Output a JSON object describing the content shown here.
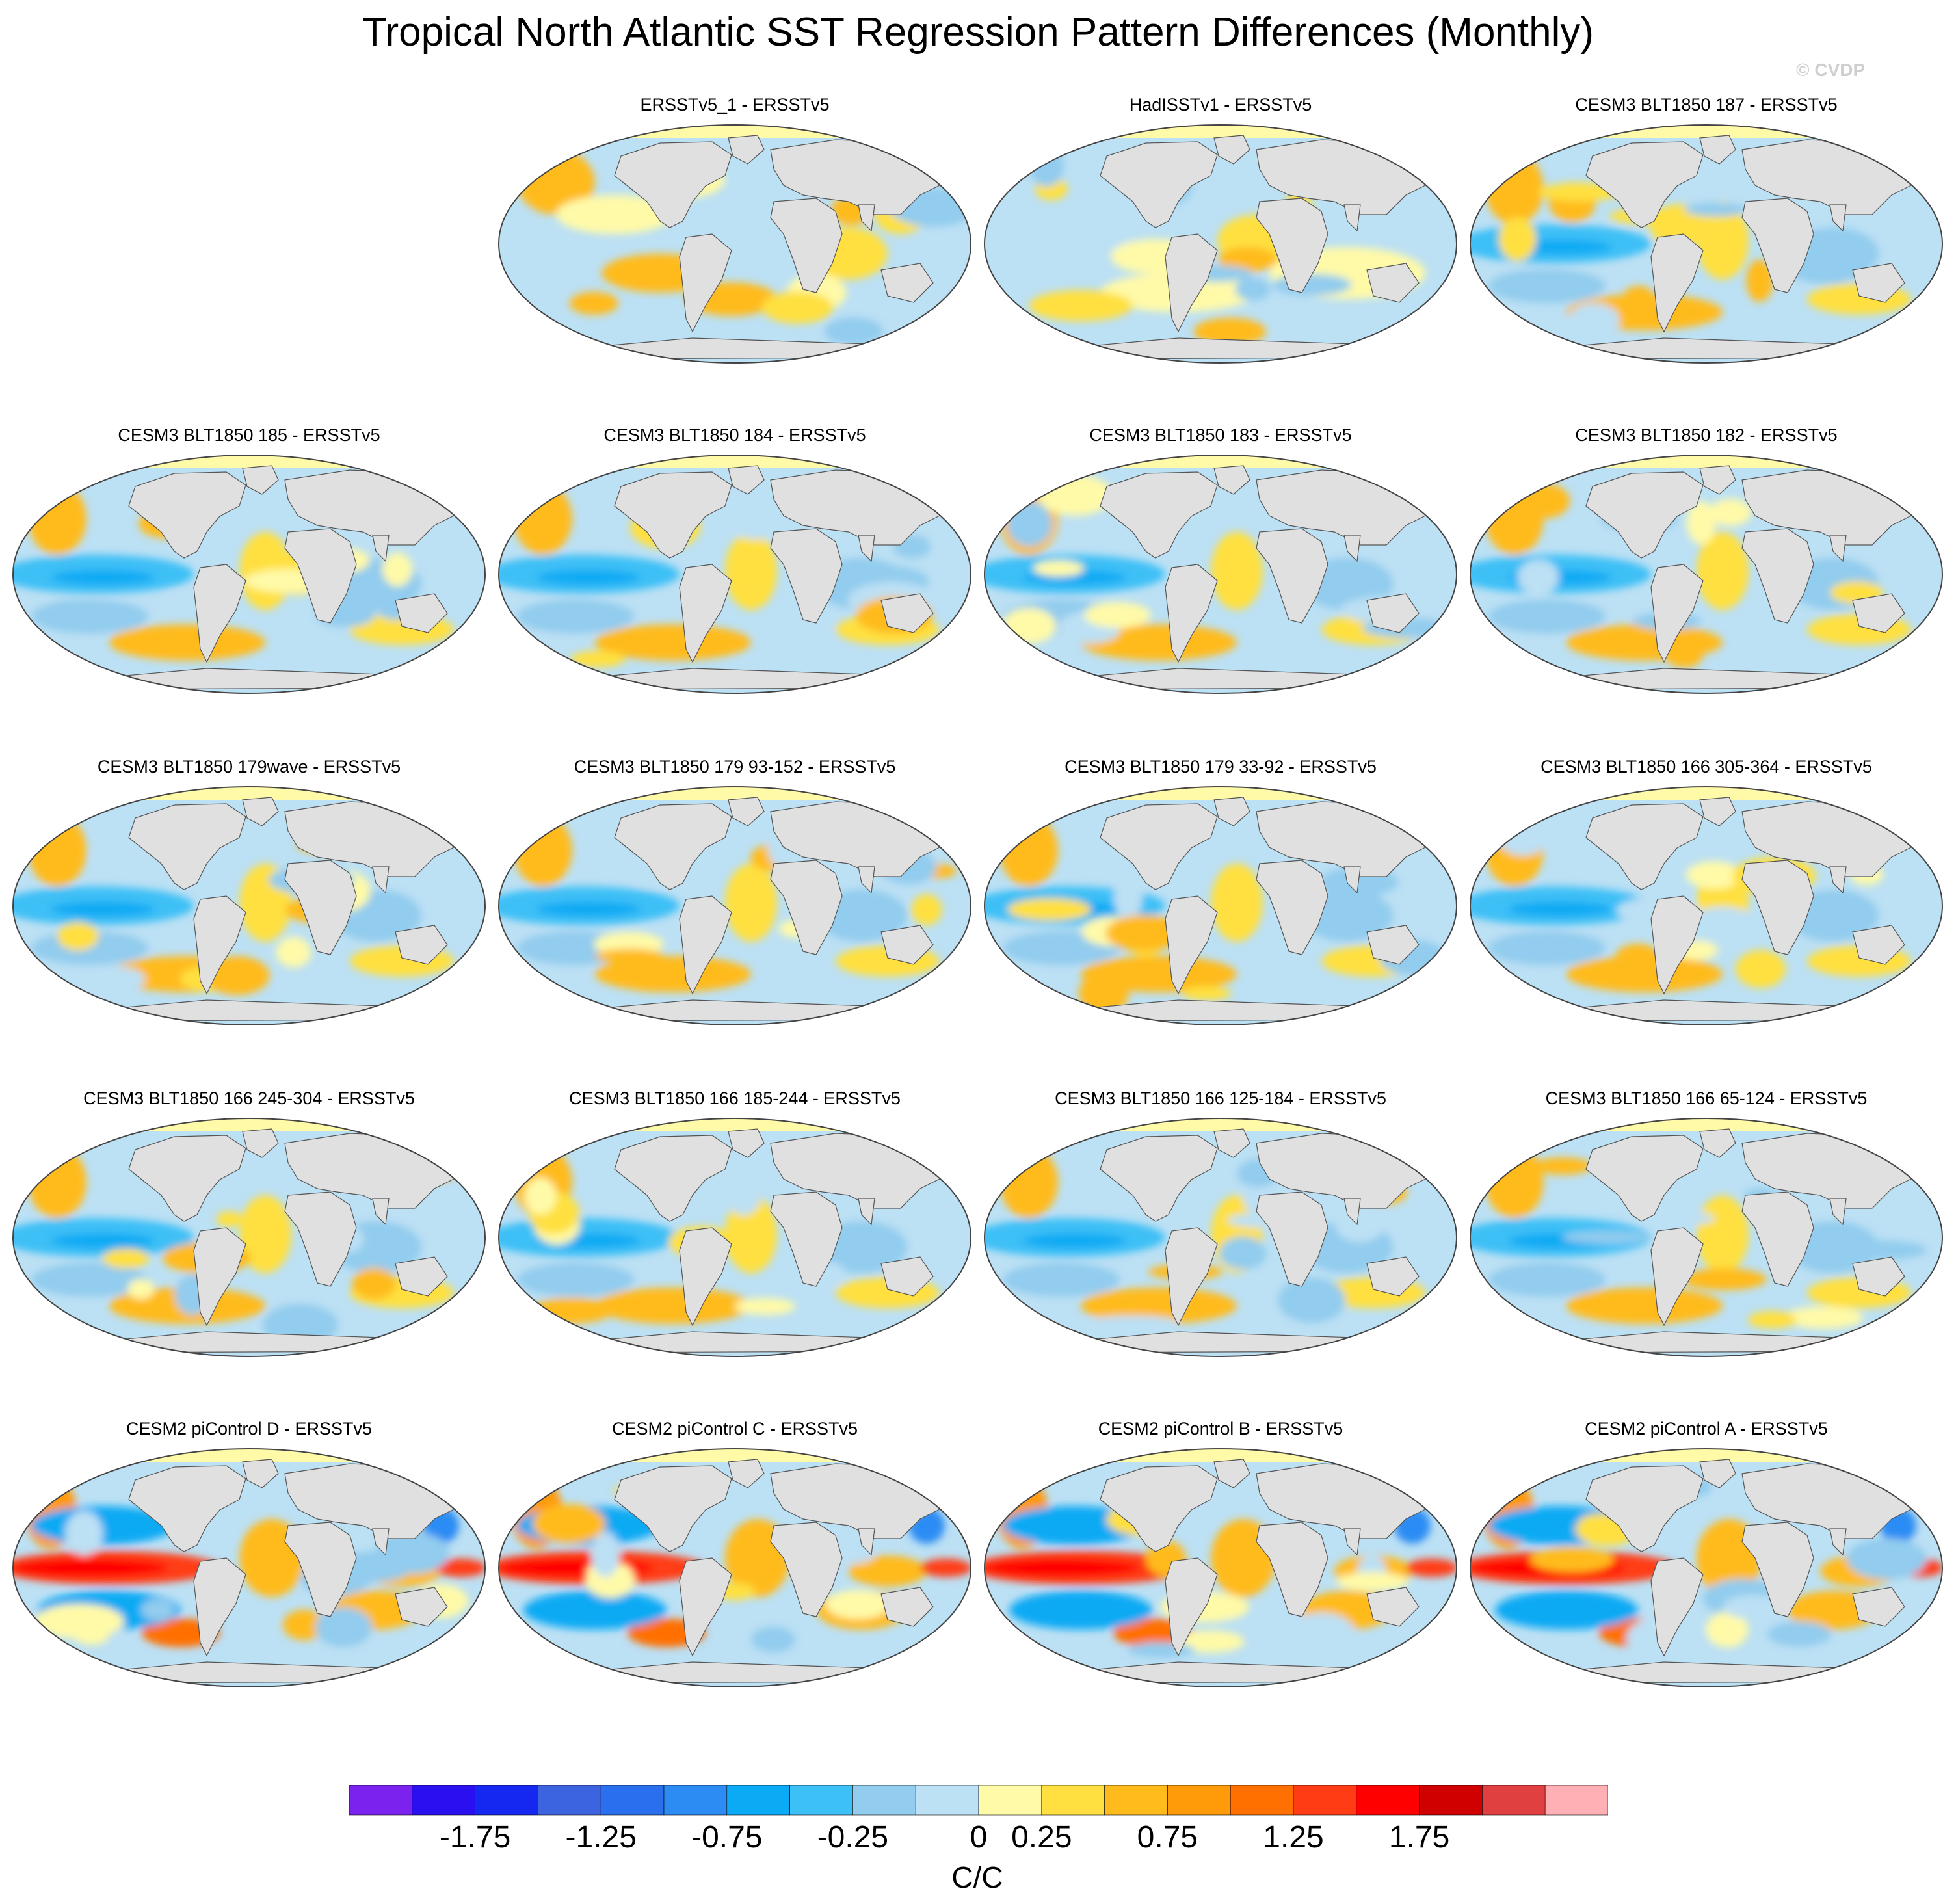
{
  "title": "Tropical North Atlantic SST Regression Pattern Differences (Monthly)",
  "watermark": "© CVDP",
  "panels": [
    {
      "label": "ERSSTv5_1 - ERSSTv5",
      "row": 0,
      "col": 1,
      "style": "obs1"
    },
    {
      "label": "HadISSTv1 - ERSSTv5",
      "row": 0,
      "col": 2,
      "style": "obs2"
    },
    {
      "label": "CESM3 BLT1850 187 - ERSSTv5",
      "row": 0,
      "col": 3,
      "style": "cesm3"
    },
    {
      "label": "CESM3 BLT1850 185 - ERSSTv5",
      "row": 1,
      "col": 0,
      "style": "cesm3"
    },
    {
      "label": "CESM3 BLT1850 184 - ERSSTv5",
      "row": 1,
      "col": 1,
      "style": "cesm3"
    },
    {
      "label": "CESM3 BLT1850 183 - ERSSTv5",
      "row": 1,
      "col": 2,
      "style": "cesm3"
    },
    {
      "label": "CESM3 BLT1850 182 - ERSSTv5",
      "row": 1,
      "col": 3,
      "style": "cesm3"
    },
    {
      "label": "CESM3 BLT1850 179wave - ERSSTv5",
      "row": 2,
      "col": 0,
      "style": "cesm3"
    },
    {
      "label": "CESM3 BLT1850 179 93-152 - ERSSTv5",
      "row": 2,
      "col": 1,
      "style": "cesm3"
    },
    {
      "label": "CESM3 BLT1850 179 33-92 - ERSSTv5",
      "row": 2,
      "col": 2,
      "style": "cesm3"
    },
    {
      "label": "CESM3 BLT1850 166 305-364 - ERSSTv5",
      "row": 2,
      "col": 3,
      "style": "cesm3"
    },
    {
      "label": "CESM3 BLT1850 166 245-304 - ERSSTv5",
      "row": 3,
      "col": 0,
      "style": "cesm3"
    },
    {
      "label": "CESM3 BLT1850 166 185-244 - ERSSTv5",
      "row": 3,
      "col": 1,
      "style": "cesm3"
    },
    {
      "label": "CESM3 BLT1850 166 125-184 - ERSSTv5",
      "row": 3,
      "col": 2,
      "style": "cesm3"
    },
    {
      "label": "CESM3 BLT1850 166 65-124 - ERSSTv5",
      "row": 3,
      "col": 3,
      "style": "cesm3"
    },
    {
      "label": "CESM2 piControl D - ERSSTv5",
      "row": 4,
      "col": 0,
      "style": "cesm2"
    },
    {
      "label": "CESM2 piControl C - ERSSTv5",
      "row": 4,
      "col": 1,
      "style": "cesm2"
    },
    {
      "label": "CESM2 piControl B - ERSSTv5",
      "row": 4,
      "col": 2,
      "style": "cesm2"
    },
    {
      "label": "CESM2 piControl A - ERSSTv5",
      "row": 4,
      "col": 3,
      "style": "cesm2"
    }
  ],
  "colorbar": {
    "colors": [
      "#7b22ee",
      "#2a10f0",
      "#1428f0",
      "#3c64e0",
      "#2a70ee",
      "#2c8cf4",
      "#0aaaf4",
      "#3cc0f6",
      "#92ccee",
      "#bce0f4",
      "#fffaa8",
      "#ffe040",
      "#ffbb1c",
      "#ff9a08",
      "#ff7000",
      "#ff3c14",
      "#ff0000",
      "#d00000",
      "#e04040",
      "#ffb0b4"
    ],
    "tick_labels": [
      "-1.75",
      "-1.25",
      "-0.75",
      "-0.25",
      "0",
      "0.25",
      "0.75",
      "1.25",
      "1.75"
    ],
    "units": "C/C"
  },
  "land_color": "#e0e0e0",
  "ocean_base": "#bce0f4"
}
